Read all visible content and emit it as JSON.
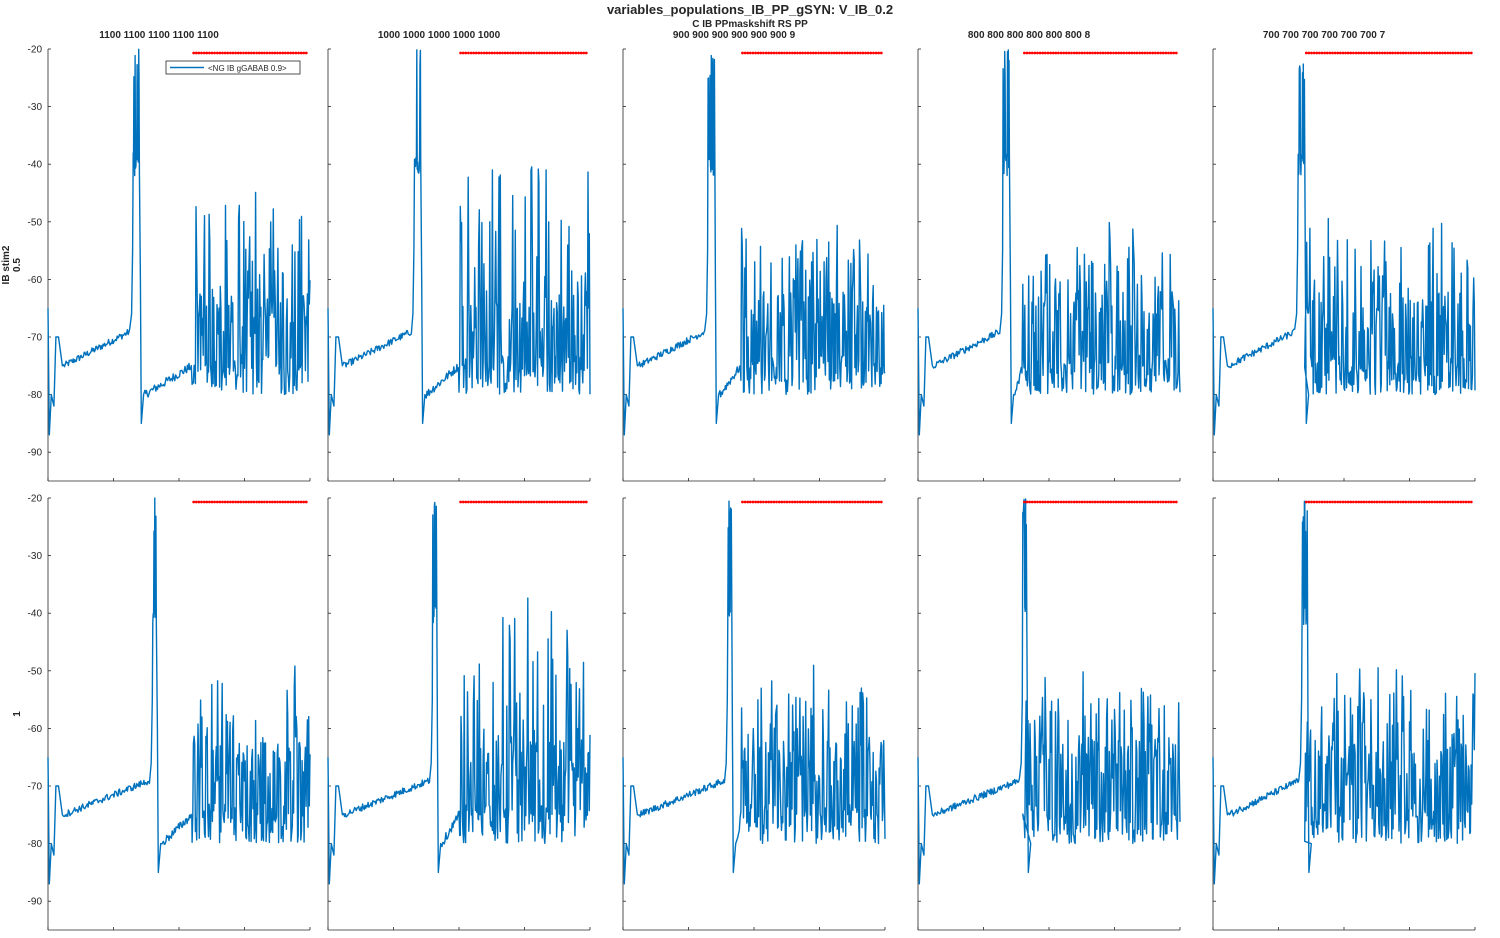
{
  "figure": {
    "title": "variables_populations_IB_PP_gSYN: V_IB_0.2",
    "subtitle": "C IB PPmaskshift RS PP",
    "column_titles": [
      "1100 1100 1100 1100 1100",
      "1000 1000 1000 1000 1000",
      "900 900 900 900 900 900 9",
      "800 800 800 800 800 800 8",
      "700 700 700 700 700 700 7"
    ],
    "row_labels": [
      [
        "IB stim2",
        "0.5"
      ],
      [
        "1"
      ]
    ],
    "legend_text": "<NG IB gGABAB  0.9>",
    "colors": {
      "trace": "#0072bd",
      "marker": "#ff0000",
      "axis": "#262626"
    }
  },
  "chart_data": {
    "type": "line",
    "layout": "2x5 subplots",
    "xlim": [
      0,
      2000
    ],
    "ylim": [
      -95,
      -20
    ],
    "xticks": [
      0,
      500,
      1000,
      1500,
      2000
    ],
    "yticks": [
      -20,
      -30,
      -40,
      -50,
      -60,
      -70,
      -80,
      -90
    ],
    "panels": [
      {
        "row": 0,
        "col": 0,
        "burst_t": 650,
        "burst_end": 700,
        "markers_start": 1100,
        "markers_end": 2000,
        "late_peak": -43
      },
      {
        "row": 0,
        "col": 1,
        "burst_t": 660,
        "burst_end": 710,
        "markers_start": 1000,
        "markers_end": 2000,
        "late_peak": -35
      },
      {
        "row": 0,
        "col": 2,
        "burst_t": 650,
        "burst_end": 700,
        "markers_start": 900,
        "markers_end": 2000,
        "late_peak": -49
      },
      {
        "row": 0,
        "col": 3,
        "burst_t": 650,
        "burst_end": 700,
        "markers_start": 800,
        "markers_end": 2000,
        "late_peak": -50
      },
      {
        "row": 0,
        "col": 4,
        "burst_t": 650,
        "burst_end": 700,
        "markers_start": 700,
        "markers_end": 2000,
        "late_peak": -49
      },
      {
        "row": 1,
        "col": 0,
        "burst_t": 800,
        "burst_end": 830,
        "markers_start": 1100,
        "markers_end": 2000,
        "late_peak": -48
      },
      {
        "row": 1,
        "col": 1,
        "burst_t": 800,
        "burst_end": 830,
        "markers_start": 1000,
        "markers_end": 2000,
        "late_peak": -36
      },
      {
        "row": 1,
        "col": 2,
        "burst_t": 800,
        "burst_end": 830,
        "markers_start": 900,
        "markers_end": 2000,
        "late_peak": -49
      },
      {
        "row": 1,
        "col": 3,
        "burst_t": 800,
        "burst_end": 830,
        "markers_start": 800,
        "markers_end": 2000,
        "late_peak": -50
      },
      {
        "row": 1,
        "col": 4,
        "burst_t": 680,
        "burst_end": 720,
        "markers_start": 700,
        "markers_end": 2000,
        "late_peak": -49
      }
    ]
  }
}
